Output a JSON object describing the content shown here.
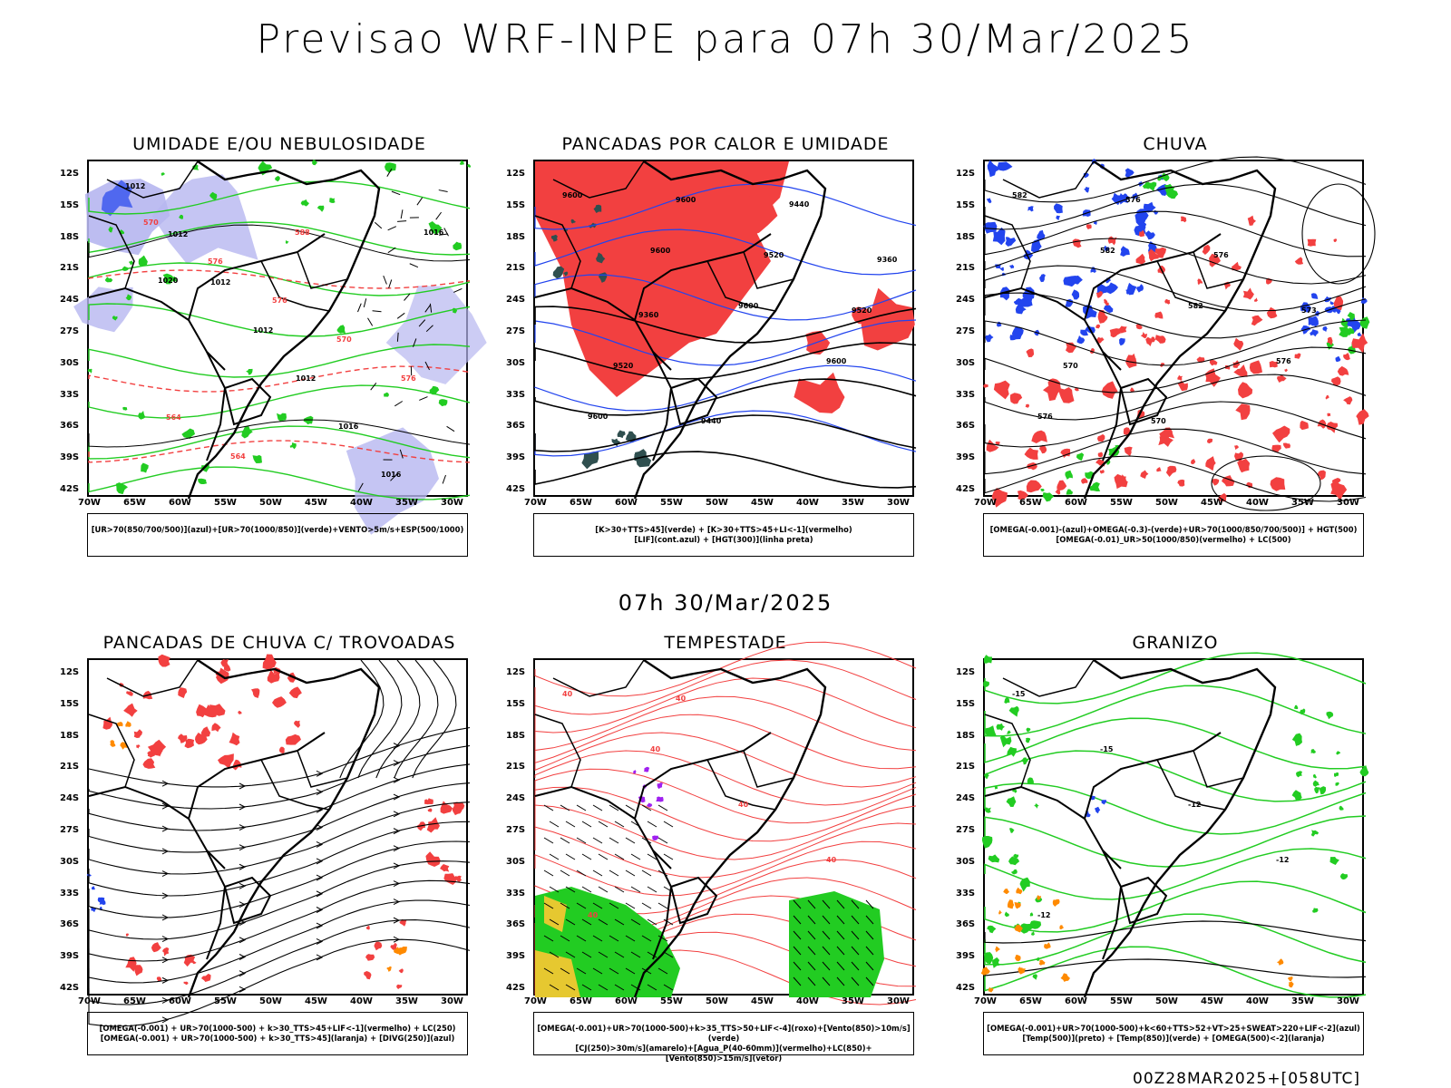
{
  "header": {
    "title": "Previsao WRF-INPE  para 07h 30/Mar/2025"
  },
  "subheader": {
    "time": "07h 30/Mar/2025"
  },
  "footer": {
    "run": "00Z28MAR2025+[058UTC]"
  },
  "axes": {
    "lat_labels": [
      "12S",
      "15S",
      "18S",
      "21S",
      "24S",
      "27S",
      "30S",
      "33S",
      "36S",
      "39S",
      "42S"
    ],
    "lon_labels": [
      "70W",
      "65W",
      "60W",
      "55W",
      "50W",
      "45W",
      "40W",
      "35W",
      "30W"
    ]
  },
  "colors": {
    "red": "#f24040",
    "green": "#22cc22",
    "blue": "#2244ee",
    "lavender": "#b6b6f0",
    "darkteal": "#2f4f4f",
    "yellow": "#e6c830",
    "orange": "#ff8a00",
    "purple": "#a020f0"
  },
  "panels": [
    {
      "id": "umidade",
      "title": "UMIDADE E/OU NEBULOSIDADE",
      "legend": [
        "[UR>70(850/700/500)](azul)+[UR>70(1000/850)](verde)+VENTO>5m/s+ESP(500/1000)"
      ],
      "labels": [
        "1012",
        "1012",
        "1012",
        "1012",
        "1012",
        "1016",
        "1016",
        "1016",
        "1020",
        "570",
        "576",
        "576",
        "570",
        "576",
        "564",
        "564",
        "588"
      ]
    },
    {
      "id": "pancadas-calor",
      "title": "PANCADAS POR CALOR E UMIDADE",
      "legend": [
        "[K>30+TTS>45](verde) + [K>30+TTS>45+LI<-1](vermelho)",
        "[LIF](cont.azul) + [HGT(300)](linha preta)"
      ],
      "labels": [
        "9600",
        "9600",
        "9600",
        "9600",
        "9600",
        "9600",
        "9520",
        "9520",
        "9520",
        "9440",
        "9440",
        "9360",
        "9360"
      ]
    },
    {
      "id": "chuva",
      "title": "CHUVA",
      "legend": [
        "[OMEGA(-0.001)-(azul)+OMEGA(-0.3)-(verde)+UR>70(1000/850/700/500)] + HGT(500)",
        "[OMEGA(-0.01)_UR>50(1000/850)(vermelho) + LC(500)"
      ],
      "labels": [
        "582",
        "582",
        "582",
        "576",
        "576",
        "576",
        "576",
        "573",
        "570",
        "570"
      ]
    },
    {
      "id": "pancadas-trovoadas",
      "title": "PANCADAS DE CHUVA C/ TROVOADAS",
      "legend": [
        "[OMEGA(-0.001) + UR>70(1000-500) + k>30_TTS>45+LIF<-1](vermelho) + LC(250)",
        "[OMEGA(-0.001) + UR>70(1000-500) + k>30_TTS>45](laranja) + [DIVG(250)](azul)"
      ],
      "labels": []
    },
    {
      "id": "tempestade",
      "title": "TEMPESTADE",
      "legend": [
        "[OMEGA(-0.001)+UR>70(1000-500)+k>35_TTS>50+LIF<-4](roxo)+[Vento(850)>10m/s](verde)",
        "[CJ(250)>30m/s](amarelo)+[Agua_P(40-60mm)](vermelho)+LC(850)+[Vento(850)>15m/s](vetor)"
      ],
      "labels": [
        "40",
        "40",
        "40",
        "40",
        "40",
        "40"
      ]
    },
    {
      "id": "granizo",
      "title": "GRANIZO",
      "legend": [
        "[OMEGA(-0.001)+UR>70(1000-500)+k<60+TTS>52+VT>25+SWEAT>220+LIF<-2](azul)",
        "[Temp(500)](preto) + [Temp(850)](verde) + [OMEGA(500)<-2](laranja)"
      ],
      "labels": [
        "-15",
        "-15",
        "-12",
        "-12",
        "-12"
      ]
    }
  ]
}
